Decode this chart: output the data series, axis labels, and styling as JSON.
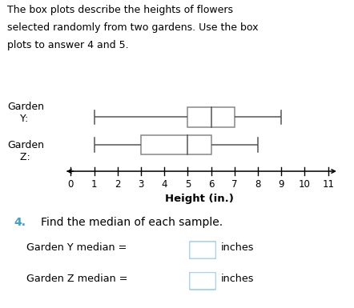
{
  "title_lines": [
    "The box plots describe the heights of flowers",
    "selected randomly from two gardens. Use the box",
    "plots to answer 4 and 5."
  ],
  "garden_Y": {
    "whisker_low": 1,
    "q1": 5,
    "median": 6,
    "q3": 7,
    "whisker_high": 9
  },
  "garden_Z": {
    "whisker_low": 1,
    "q1": 3,
    "median": 5,
    "q3": 6,
    "whisker_high": 8
  },
  "xmin": 0,
  "xmax": 11,
  "xlabel": "Height (in.)",
  "xticks": [
    0,
    1,
    2,
    3,
    4,
    5,
    6,
    7,
    8,
    9,
    10,
    11
  ],
  "question_number": "4.",
  "question_text": "Find the median of each sample.",
  "label_Y": "Garden Y median =",
  "label_Z": "Garden Z median =",
  "suffix": "inches",
  "box_color": "white",
  "box_edgecolor": "#888888",
  "line_color": "#555555",
  "bg_color": "white",
  "question_color": "#3a9fd4",
  "ans_box_color": "#a8d4f0",
  "title_fontsize": 9.0,
  "tick_fontsize": 8.5,
  "label_fontsize": 9.5,
  "q_fontsize": 10.0
}
